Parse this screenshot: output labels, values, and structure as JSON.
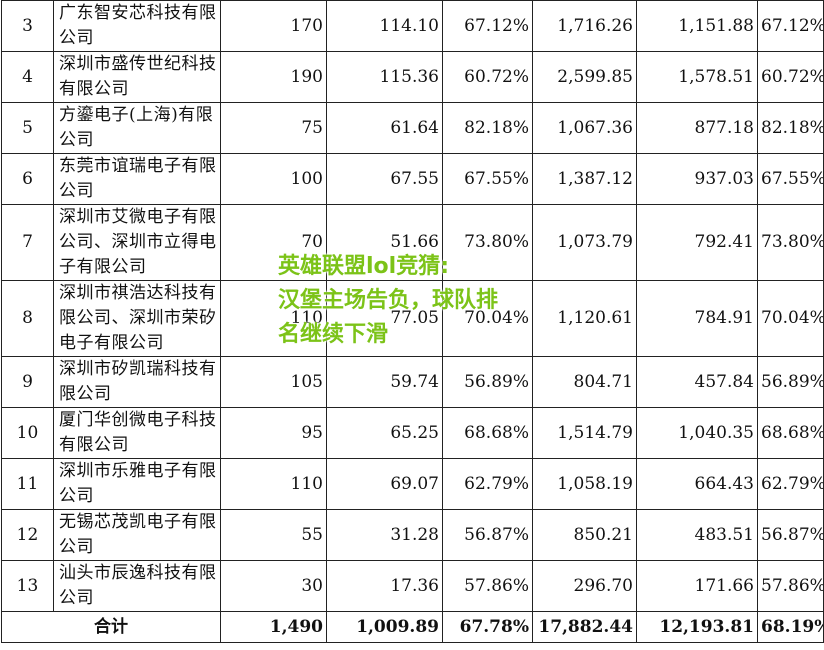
{
  "table": {
    "rows": [
      {
        "idx": "3",
        "name": "广东智安芯科技有限公司",
        "c1": "170",
        "c2": "114.10",
        "c3": "67.12%",
        "c4": "1,716.26",
        "c5": "1,151.88",
        "c6": "67.12%"
      },
      {
        "idx": "4",
        "name": "深圳市盛传世纪科技有限公司",
        "c1": "190",
        "c2": "115.36",
        "c3": "60.72%",
        "c4": "2,599.85",
        "c5": "1,578.51",
        "c6": "60.72%"
      },
      {
        "idx": "5",
        "name": "方鎏电子(上海)有限公司",
        "c1": "75",
        "c2": "61.64",
        "c3": "82.18%",
        "c4": "1,067.36",
        "c5": "877.18",
        "c6": "82.18%"
      },
      {
        "idx": "6",
        "name": "东莞市谊瑞电子有限公司",
        "c1": "100",
        "c2": "67.55",
        "c3": "67.55%",
        "c4": "1,387.12",
        "c5": "937.03",
        "c6": "67.55%"
      },
      {
        "idx": "7",
        "name": "深圳市艾微电子有限公司、深圳市立得电子有限公司",
        "c1": "70",
        "c2": "51.66",
        "c3": "73.80%",
        "c4": "1,073.79",
        "c5": "792.41",
        "c6": "73.80%"
      },
      {
        "idx": "8",
        "name": "深圳市祺浩达科技有限公司、深圳市荣矽电子有限公司",
        "c1": "110",
        "c2": "77.05",
        "c3": "70.04%",
        "c4": "1,120.61",
        "c5": "784.91",
        "c6": "70.04%"
      },
      {
        "idx": "9",
        "name": "深圳市矽凯瑞科技有限公司",
        "c1": "105",
        "c2": "59.74",
        "c3": "56.89%",
        "c4": "804.71",
        "c5": "457.84",
        "c6": "56.89%"
      },
      {
        "idx": "10",
        "name": "厦门华创微电子科技有限公司",
        "c1": "95",
        "c2": "65.25",
        "c3": "68.68%",
        "c4": "1,514.79",
        "c5": "1,040.35",
        "c6": "68.68%"
      },
      {
        "idx": "11",
        "name": "深圳市乐雅电子有限公司",
        "c1": "110",
        "c2": "69.07",
        "c3": "62.79%",
        "c4": "1,058.19",
        "c5": "664.43",
        "c6": "62.79%"
      },
      {
        "idx": "12",
        "name": "无锡芯茂凯电子有限公司",
        "c1": "55",
        "c2": "31.28",
        "c3": "56.87%",
        "c4": "850.21",
        "c5": "483.51",
        "c6": "56.87%"
      },
      {
        "idx": "13",
        "name": "汕头市辰逸科技有限公司",
        "c1": "30",
        "c2": "17.36",
        "c3": "57.86%",
        "c4": "296.70",
        "c5": "171.66",
        "c6": "57.86%"
      }
    ],
    "total": {
      "label": "合计",
      "c1": "1,490",
      "c2": "1,009.89",
      "c3": "67.78%",
      "c4": "17,882.44",
      "c5": "12,193.81",
      "c6": "68.19%"
    }
  },
  "overlay": {
    "line1": "英雄联盟lol竞猜:",
    "line2": "汉堡主场告负，球队排",
    "line3": "名继续下滑"
  },
  "colors": {
    "overlay_text": "#7cc318"
  }
}
